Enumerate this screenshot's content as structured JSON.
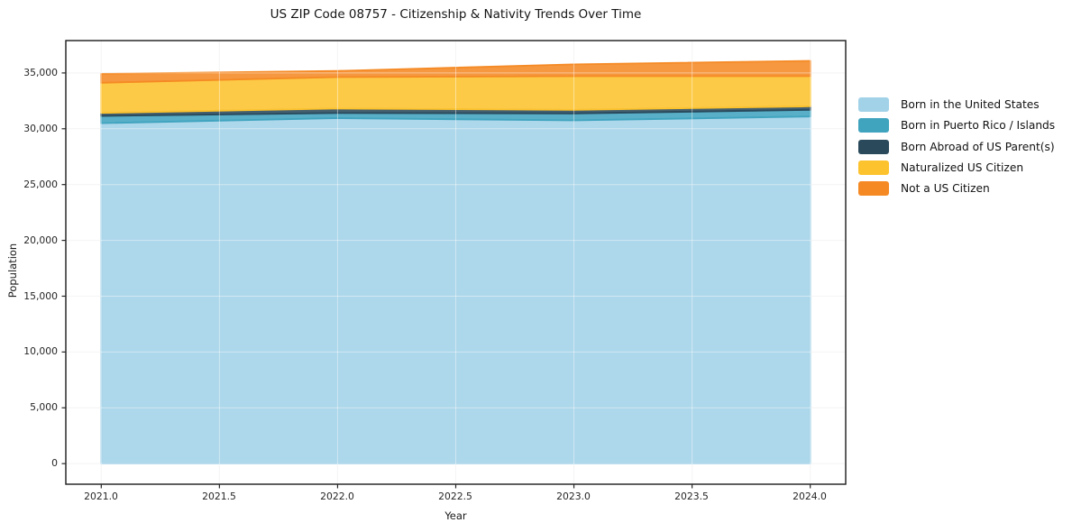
{
  "chart_data": {
    "type": "area",
    "stacked": true,
    "title": "US ZIP Code 08757 - Citizenship & Nativity Trends Over Time",
    "xlabel": "Year",
    "ylabel": "Population",
    "x": [
      2021,
      2022,
      2023,
      2024
    ],
    "series": [
      {
        "name": "Born in the United States",
        "color": "#a2d2e8",
        "values": [
          30500,
          30950,
          30750,
          31100
        ]
      },
      {
        "name": "Born in Puerto Rico / Islands",
        "color": "#41a4bf",
        "values": [
          650,
          460,
          620,
          590
        ]
      },
      {
        "name": "Born Abroad of US Parent(s)",
        "color": "#2a4a5c",
        "values": [
          270,
          400,
          320,
          320
        ]
      },
      {
        "name": "Naturalized US Citizen",
        "color": "#fdc32e",
        "values": [
          2700,
          2820,
          3020,
          2700
        ]
      },
      {
        "name": "Not a US Citizen",
        "color": "#f58a25",
        "values": [
          800,
          550,
          1060,
          1370
        ]
      }
    ],
    "xticks": [
      2021.0,
      2021.5,
      2022.0,
      2022.5,
      2023.0,
      2023.5,
      2024.0
    ],
    "xticklabels": [
      "2021.0",
      "2021.5",
      "2022.0",
      "2022.5",
      "2023.0",
      "2023.5",
      "2024.0"
    ],
    "yticks": [
      0,
      5000,
      10000,
      15000,
      20000,
      25000,
      30000,
      35000
    ],
    "yticklabels": [
      "0",
      "5,000",
      "10,000",
      "15,000",
      "20,000",
      "25,000",
      "30,000",
      "35,000"
    ],
    "xlim": [
      2020.85,
      2024.15
    ],
    "ylim": [
      -1845,
      37900
    ],
    "grid": true,
    "legend_position": "right",
    "axis_color": "#1b1b1b",
    "grid_color": "#ededed",
    "fill_opacity": 0.88
  }
}
